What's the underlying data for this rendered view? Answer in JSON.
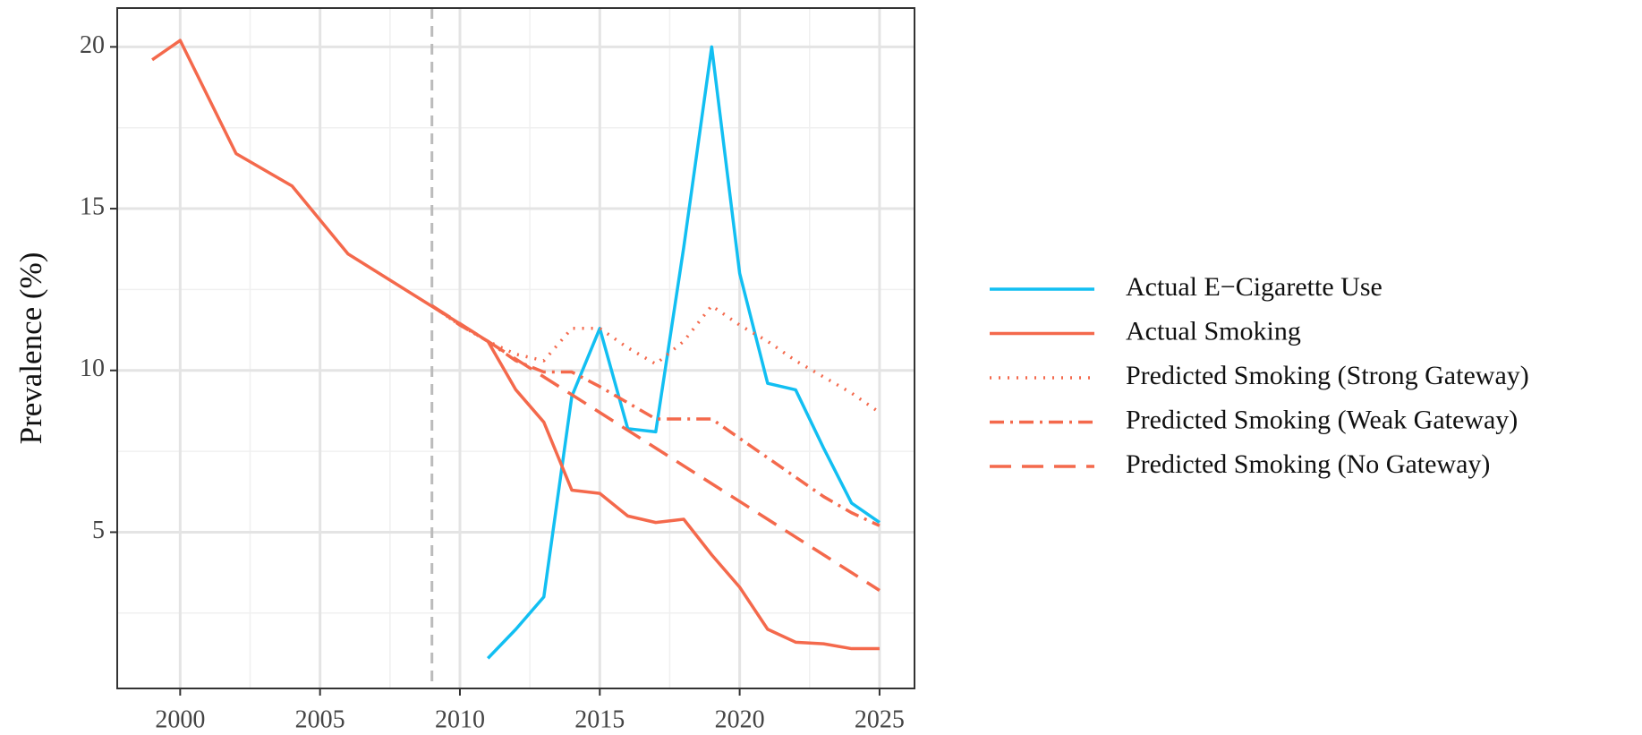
{
  "chart_data": {
    "type": "line",
    "y_label": "Prevalence (%)",
    "xlim": [
      1997.75,
      2026.25
    ],
    "ylim": [
      0.17,
      21.2
    ],
    "xticks": [
      2000,
      2005,
      2010,
      2015,
      2020,
      2025
    ],
    "yticks": [
      5,
      10,
      15,
      20
    ],
    "minor_xticks": [
      2002.5,
      2007.5,
      2012.5,
      2017.5,
      2022.5
    ],
    "minor_yticks": [
      2.5,
      7.5,
      12.5,
      17.5
    ],
    "grid": true,
    "vline": {
      "x": 2009,
      "color": "#bbbbbb"
    },
    "legend": "right",
    "series": [
      {
        "name": "Actual E−Cigarette Use",
        "color": "#12bff2",
        "linestyle": "solid",
        "x": [
          2011,
          2012,
          2013,
          2014,
          2015,
          2016,
          2017,
          2018,
          2019,
          2020,
          2021,
          2022,
          2023,
          2024,
          2025
        ],
        "values": [
          1.1,
          2.0,
          3.0,
          9.2,
          11.3,
          8.2,
          8.1,
          13.8,
          20.0,
          13.0,
          9.6,
          9.4,
          7.6,
          5.9,
          5.3
        ]
      },
      {
        "name": "Actual Smoking",
        "color": "#f4694c",
        "linestyle": "solid",
        "x": [
          1999,
          2000,
          2002,
          2004,
          2006,
          2011,
          2012,
          2013,
          2014,
          2015,
          2016,
          2017,
          2018,
          2019,
          2020,
          2021,
          2022,
          2023,
          2024,
          2025
        ],
        "values": [
          19.6,
          20.2,
          16.7,
          15.7,
          13.6,
          10.9,
          9.4,
          8.4,
          6.3,
          6.2,
          5.5,
          5.3,
          5.4,
          4.3,
          3.3,
          2.0,
          1.6,
          1.55,
          1.4,
          1.4
        ]
      },
      {
        "name": "Predicted Smoking (Strong Gateway)",
        "color": "#f4694c",
        "linestyle": "dotted",
        "x": [
          2009,
          2010,
          2011,
          2012,
          2013,
          2014,
          2015,
          2016,
          2017,
          2018,
          2019,
          2020,
          2021,
          2022,
          2023,
          2024,
          2025
        ],
        "values": [
          12.0,
          11.4,
          10.9,
          10.5,
          10.3,
          11.3,
          11.3,
          10.7,
          10.2,
          10.9,
          12.0,
          11.4,
          10.9,
          10.3,
          9.8,
          9.3,
          8.7
        ]
      },
      {
        "name": "Predicted Smoking (Weak Gateway)",
        "color": "#f4694c",
        "linestyle": "dashdot",
        "x": [
          2009,
          2010,
          2011,
          2012,
          2013,
          2014,
          2015,
          2016,
          2017,
          2018,
          2019,
          2020,
          2021,
          2022,
          2023,
          2024,
          2025
        ],
        "values": [
          12.0,
          11.4,
          10.9,
          10.3,
          9.95,
          9.95,
          9.5,
          9.0,
          8.5,
          8.5,
          8.5,
          7.9,
          7.3,
          6.7,
          6.1,
          5.6,
          5.2
        ]
      },
      {
        "name": "Predicted Smoking (No Gateway)",
        "color": "#f4694c",
        "linestyle": "dashed",
        "x": [
          2009,
          2011,
          2013,
          2015,
          2017,
          2019,
          2021,
          2023,
          2025
        ],
        "values": [
          12.0,
          10.9,
          9.8,
          8.7,
          7.6,
          6.5,
          5.4,
          4.3,
          3.2
        ]
      }
    ]
  }
}
